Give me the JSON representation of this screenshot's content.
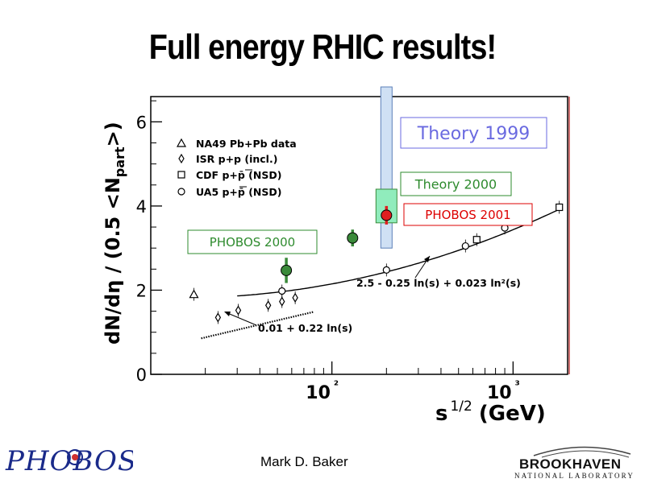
{
  "slide": {
    "title": "Full energy RHIC results!",
    "author": "Mark D. Baker",
    "logo_left_text": "PHOBOS",
    "logo_right_text": "BROOKHAVEN NATIONAL LABORATORY"
  },
  "chart_data": {
    "type": "scatter",
    "x_scale": "log",
    "xlim": [
      10,
      2000
    ],
    "ylim": [
      0,
      6.6
    ],
    "ylabel": "dN/dη / (0.5 <Npart>)",
    "xlabel": "s^1/2 (GeV)",
    "y_ticks": [
      "0",
      "2",
      "4",
      "6"
    ],
    "x_ticks": [
      {
        "value": 100,
        "label": "10²"
      },
      {
        "value": 1000,
        "label": "10³"
      }
    ],
    "legend": [
      {
        "marker": "triangle",
        "label": "NA49 Pb+Pb data"
      },
      {
        "marker": "diamond",
        "label": "ISR p+p (incl.)"
      },
      {
        "marker": "square",
        "label": "CDF p+p̄ (NSD)"
      },
      {
        "marker": "circle",
        "label": "UA5 p+p̄ (NSD)"
      }
    ],
    "series": [
      {
        "name": "NA49 Pb+Pb data",
        "marker": "triangle",
        "points": [
          [
            17.3,
            1.9
          ]
        ]
      },
      {
        "name": "ISR p+p (incl.)",
        "marker": "diamond",
        "points": [
          [
            23.5,
            1.35
          ],
          [
            30.4,
            1.52
          ],
          [
            44.5,
            1.64
          ],
          [
            53,
            1.73
          ],
          [
            62.7,
            1.82
          ]
        ]
      },
      {
        "name": "CDF p+p̄ (NSD)",
        "marker": "square",
        "points": [
          [
            630,
            3.2
          ],
          [
            1800,
            3.97
          ]
        ]
      },
      {
        "name": "UA5 p+p̄ (NSD)",
        "marker": "circle",
        "points": [
          [
            53,
            1.98
          ],
          [
            200,
            2.48
          ],
          [
            546,
            3.05
          ],
          [
            900,
            3.48
          ]
        ]
      },
      {
        "name": "PHOBOS 2000",
        "marker": "filled-circle",
        "color": "#3a8a3a",
        "points": [
          [
            56,
            2.47,
            0.3
          ],
          [
            130,
            3.24,
            0.2
          ]
        ]
      },
      {
        "name": "PHOBOS 2001",
        "marker": "filled-circle",
        "color": "#e02020",
        "points": [
          [
            200,
            3.78,
            0.22
          ]
        ]
      }
    ],
    "fits": [
      {
        "label": "2.5 - 0.25 ln(s) + 0.023 ln²(s)",
        "style": "solid"
      },
      {
        "label": "0.01 + 0.22 ln(s)",
        "style": "dotted"
      }
    ],
    "theory_bands": [
      {
        "label": "Theory 1999",
        "x": 200,
        "ymin": 3.0,
        "ymax": 6.8,
        "color": "#cfe0f4"
      },
      {
        "label": "Theory 2000",
        "x": 200,
        "ymin": 3.6,
        "ymax": 4.4,
        "color": "#90ecbc"
      }
    ],
    "annotations": [
      {
        "label": "PHOBOS 2000",
        "color": "#2e8b2e"
      },
      {
        "label": "PHOBOS 2001",
        "color": "#dd0000"
      },
      {
        "label": "Theory 1999",
        "color": "#6a6ae0"
      },
      {
        "label": "Theory 2000",
        "color": "#2e8b2e"
      }
    ]
  }
}
